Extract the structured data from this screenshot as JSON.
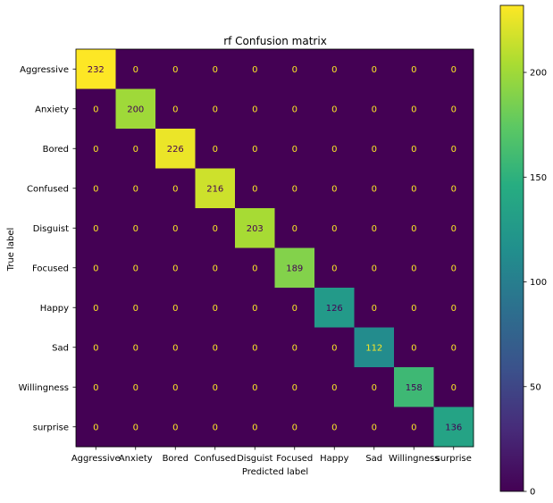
{
  "chart_data": {
    "type": "heatmap",
    "title": "rf Confusion matrix",
    "xlabel": "Predicted label",
    "ylabel": "True label",
    "x_categories": [
      "Aggressive",
      "Anxiety",
      "Bored",
      "Confused",
      "Disguist",
      "Focused",
      "Happy",
      "Sad",
      "Willingness",
      "surprise"
    ],
    "y_categories": [
      "Aggressive",
      "Anxiety",
      "Bored",
      "Confused",
      "Disguist",
      "Focused",
      "Happy",
      "Sad",
      "Willingness",
      "surprise"
    ],
    "matrix": [
      [
        232,
        0,
        0,
        0,
        0,
        0,
        0,
        0,
        0,
        0
      ],
      [
        0,
        200,
        0,
        0,
        0,
        0,
        0,
        0,
        0,
        0
      ],
      [
        0,
        0,
        226,
        0,
        0,
        0,
        0,
        0,
        0,
        0
      ],
      [
        0,
        0,
        0,
        216,
        0,
        0,
        0,
        0,
        0,
        0
      ],
      [
        0,
        0,
        0,
        0,
        203,
        0,
        0,
        0,
        0,
        0
      ],
      [
        0,
        0,
        0,
        0,
        0,
        189,
        0,
        0,
        0,
        0
      ],
      [
        0,
        0,
        0,
        0,
        0,
        0,
        126,
        0,
        0,
        0
      ],
      [
        0,
        0,
        0,
        0,
        0,
        0,
        0,
        112,
        0,
        0
      ],
      [
        0,
        0,
        0,
        0,
        0,
        0,
        0,
        0,
        158,
        0
      ],
      [
        0,
        0,
        0,
        0,
        0,
        0,
        0,
        0,
        0,
        136
      ]
    ],
    "colormap": "viridis",
    "value_range": [
      0,
      232
    ],
    "colorbar_ticks": [
      0,
      50,
      100,
      150,
      200
    ],
    "grid": false
  },
  "colors": {
    "low_text": "#fde725",
    "high_text": "#440154"
  }
}
